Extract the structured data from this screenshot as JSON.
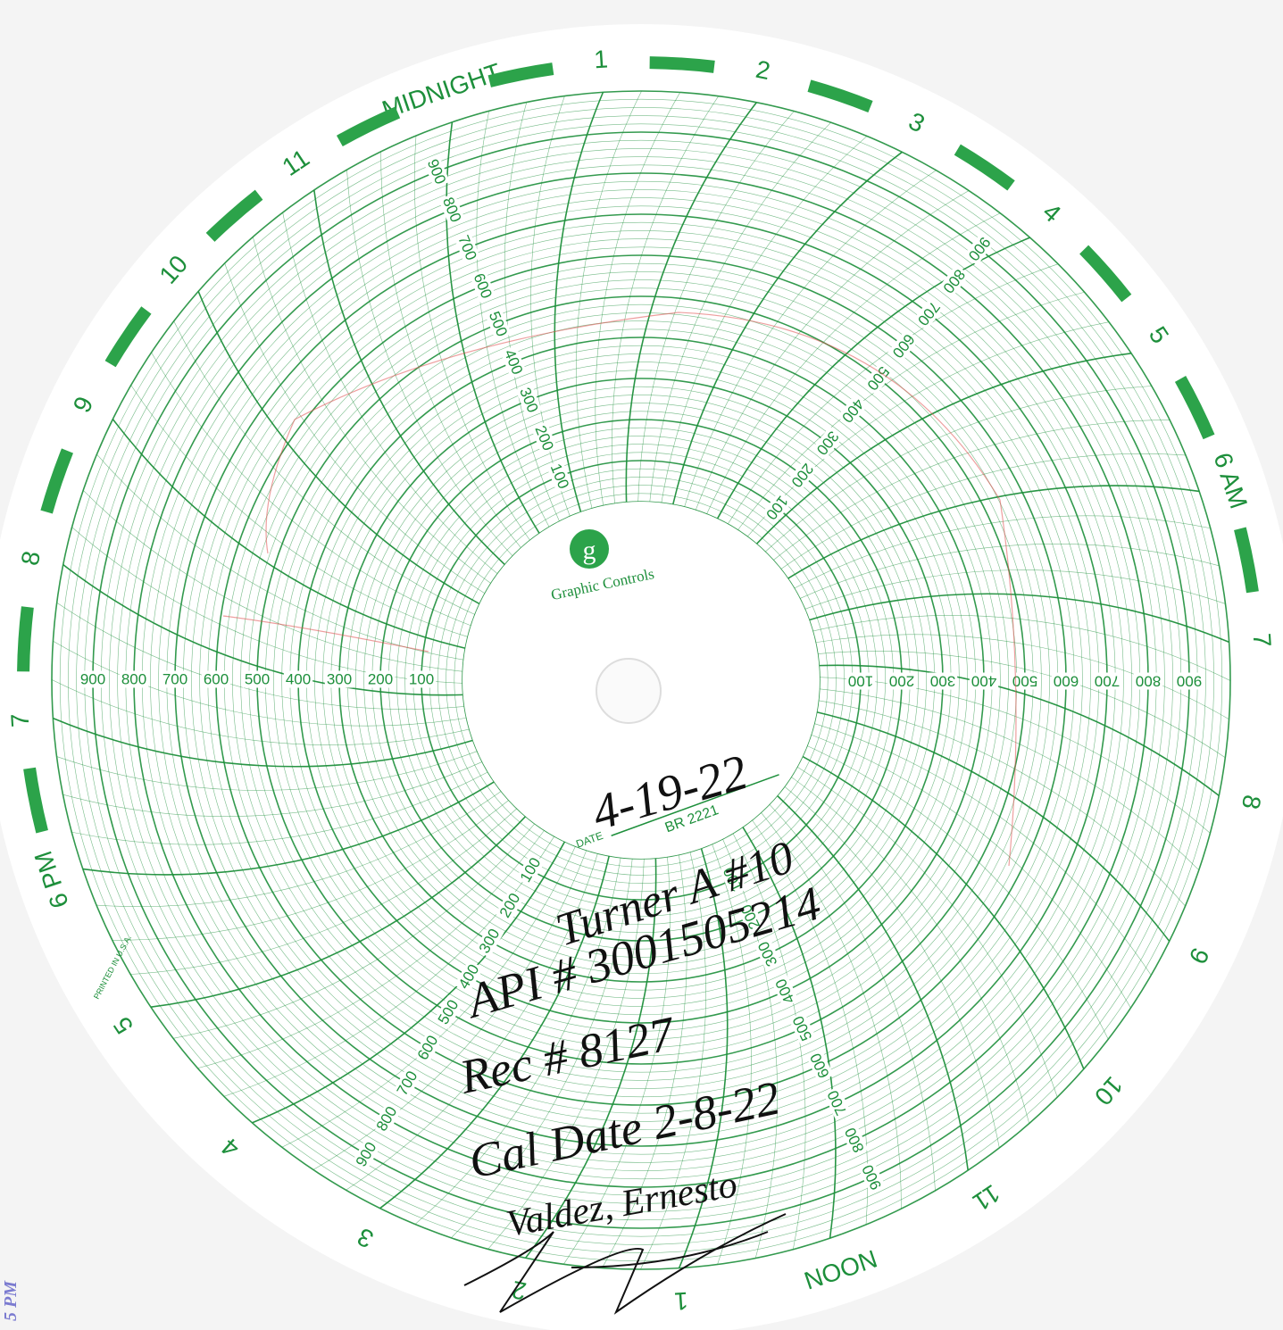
{
  "chart": {
    "logo": "g",
    "brand": "Graphic Controls",
    "hours": [
      "MIDNIGHT",
      "1",
      "2",
      "3",
      "4",
      "5",
      "6 AM",
      "7",
      "8",
      "9",
      "10",
      "11",
      "NOON",
      "1",
      "2",
      "3",
      "4",
      "5",
      "6 PM",
      "7",
      "8",
      "9",
      "10",
      "11"
    ],
    "scale_labels": [
      100,
      200,
      300,
      400,
      500,
      600,
      700,
      800,
      900
    ],
    "date_label": "DATE",
    "chart_code": "BR 2221",
    "printed": "PRINTED IN U.S.A."
  },
  "handwriting": {
    "date": "4-19-22",
    "well": "Turner A #10",
    "api": "API # 3001505214",
    "rec": "Rec # 8127",
    "cal_date": "Cal Date 2-8-22",
    "name": "Valdez, Ernesto"
  },
  "margin_note": "5 PM"
}
